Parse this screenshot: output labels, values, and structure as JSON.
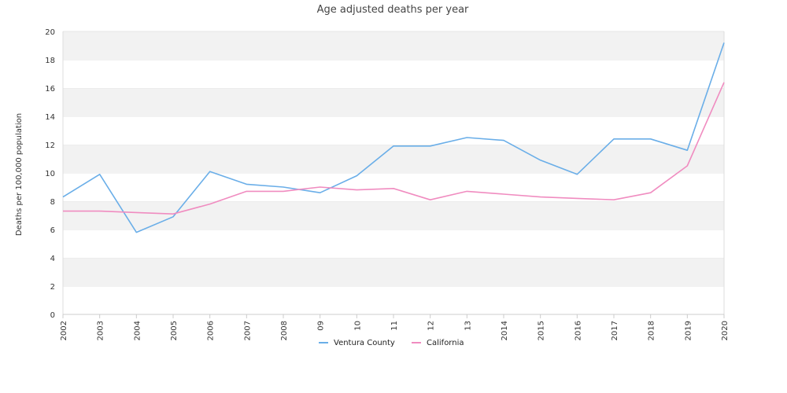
{
  "chart_data": {
    "type": "line",
    "title": "Age adjusted deaths per year",
    "xlabel": "",
    "ylabel": "Deaths per 100,000 population",
    "categories": [
      "2002",
      "2003",
      "2004",
      "2005",
      "2006",
      "2007",
      "2008",
      "09",
      "10",
      "11",
      "12",
      "13",
      "2014",
      "2015",
      "2016",
      "2017",
      "2018",
      "2019",
      "2020"
    ],
    "ylim": [
      0,
      20
    ],
    "yticks": [
      0,
      2,
      4,
      6,
      8,
      10,
      12,
      14,
      16,
      18,
      20
    ],
    "grid": "alternating horizontal bands",
    "legend_position": "bottom-center",
    "series": [
      {
        "name": "Ventura County",
        "color": "#6aaee8",
        "values": [
          8.3,
          9.9,
          5.8,
          6.9,
          10.1,
          9.2,
          9.0,
          8.6,
          9.8,
          11.9,
          11.9,
          12.5,
          12.3,
          10.9,
          9.9,
          12.4,
          12.4,
          11.6,
          19.2
        ]
      },
      {
        "name": "California",
        "color": "#f08cc0",
        "values": [
          7.3,
          7.3,
          7.2,
          7.1,
          7.8,
          8.7,
          8.7,
          9.0,
          8.8,
          8.9,
          8.1,
          8.7,
          8.5,
          8.3,
          8.2,
          8.1,
          8.6,
          10.5,
          16.4
        ]
      }
    ]
  }
}
